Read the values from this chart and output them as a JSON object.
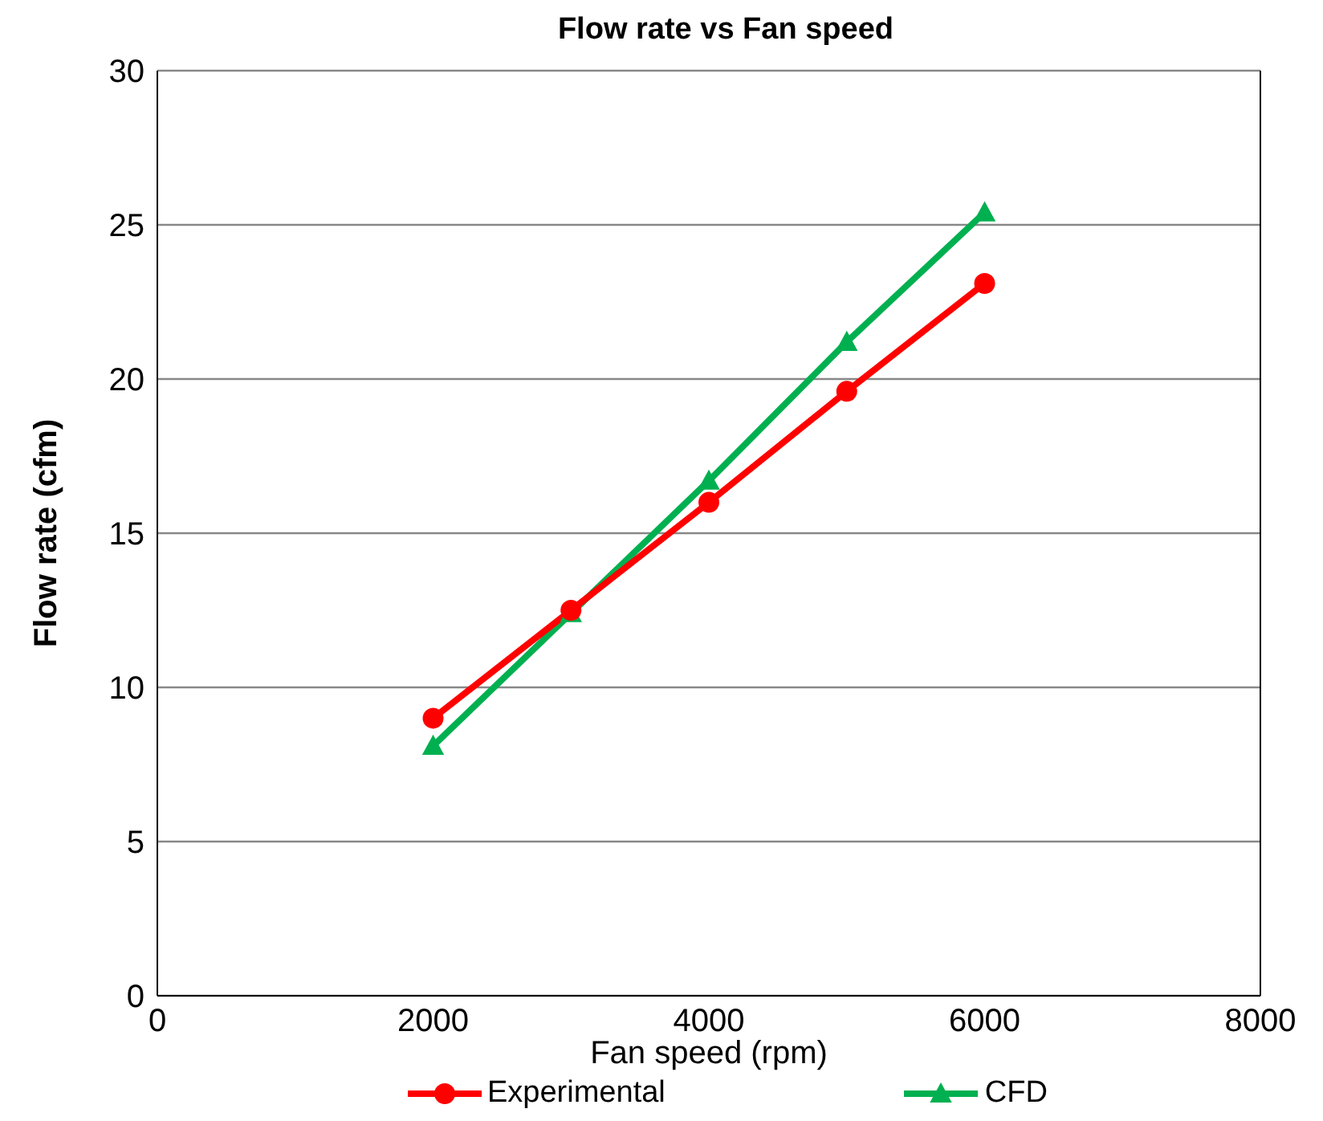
{
  "chart_data": {
    "type": "line",
    "title": "Flow rate vs Fan speed",
    "xlabel": "Fan speed (rpm)",
    "ylabel": "Flow rate (cfm)",
    "x": [
      2000,
      3000,
      4000,
      5000,
      6000
    ],
    "series": [
      {
        "name": "Experimental",
        "color": "#ff0000",
        "marker": "circle",
        "values": [
          9.0,
          12.5,
          16.0,
          19.6,
          23.1
        ]
      },
      {
        "name": "CFD",
        "color": "#00b050",
        "marker": "triangle",
        "values": [
          8.1,
          12.4,
          16.7,
          21.2,
          25.4
        ]
      }
    ],
    "xlim": [
      0,
      8000
    ],
    "xticks": [
      0,
      2000,
      4000,
      6000,
      8000
    ],
    "ylim": [
      0,
      30
    ],
    "yticks": [
      0,
      5,
      10,
      15,
      20,
      25,
      30
    ],
    "grid": "y",
    "legend": "bottom",
    "line_style": "solid"
  }
}
